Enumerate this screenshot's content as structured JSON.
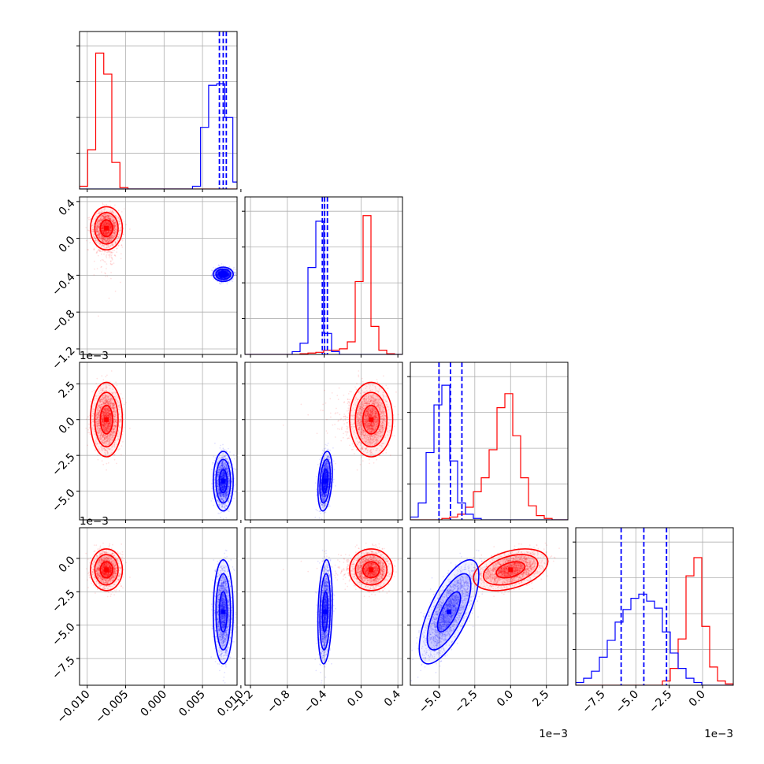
{
  "chart_data": {
    "type": "scatter",
    "subtype": "corner-plot",
    "colors": {
      "red": "#ff0000",
      "blue": "#0000ff"
    },
    "series": [],
    "parameters": [
      {
        "range": [
          -0.011,
          0.0095
        ],
        "ticks": [
          -0.01,
          -0.005,
          0.0,
          0.005,
          0.01
        ],
        "tick_labels": [
          "−0.010",
          "−0.005",
          "0.000",
          "0.005",
          "0.010"
        ]
      },
      {
        "range": [
          -1.26,
          0.45
        ],
        "ticks": [
          -1.2,
          -0.8,
          -0.4,
          0.0,
          0.4
        ],
        "tick_labels": [
          "−1.2",
          "−0.8",
          "−0.4",
          "0.0",
          "0.4"
        ]
      },
      {
        "range": [
          -7.0,
          4.0
        ],
        "ticks": [
          -5.0,
          -2.5,
          0.0,
          2.5
        ],
        "tick_labels": [
          "−5.0",
          "−2.5",
          "0.0",
          "2.5"
        ],
        "offset_text": "1e−3"
      },
      {
        "range": [
          -9.5,
          2.3
        ],
        "ticks": [
          -7.5,
          -5.0,
          -2.5,
          0.0
        ],
        "tick_labels": [
          "−7.5",
          "−5.0",
          "−2.5",
          "0.0"
        ],
        "offset_text": "1e−3"
      }
    ],
    "bottom_offset_texts": [
      "",
      "",
      "1e−3",
      "1e−3"
    ],
    "blue_quantile_lines": [
      [
        0.0072,
        0.0077,
        0.0081
      ],
      [
        -0.42,
        -0.395,
        -0.365
      ],
      [
        -5.0,
        -4.2,
        -3.4
      ],
      [
        -6.1,
        -4.4,
        -2.7
      ]
    ],
    "distributions": {
      "red": {
        "means": [
          -0.0075,
          0.11,
          0.0,
          -0.85
        ],
        "sds": [
          0.0008,
          0.09,
          1.0,
          0.6
        ],
        "corr_0_1": 0.0,
        "corr_2_3": 0.0,
        "corr_1_2": 0.0
      },
      "blue": {
        "means": [
          0.0077,
          -0.39,
          -4.3,
          -4.0
        ],
        "sds": [
          0.0005,
          0.03,
          0.8,
          1.5
        ],
        "corr_1_3": 0.0,
        "corr_2_3": 0.7,
        "corr_1_2": 0.3
      }
    },
    "histograms": {
      "red": {
        "p0": {
          "edges_start": -0.011,
          "step": 0.00105,
          "counts": [
            0.02,
            0.28,
            0.97,
            0.82,
            0.19,
            0.01,
            0,
            0,
            0,
            0,
            0,
            0,
            0,
            0,
            0,
            0,
            0,
            0,
            0,
            0
          ]
        },
        "p1": {
          "edges_start": -1.26,
          "step": 0.0855,
          "counts": [
            0,
            0,
            0,
            0,
            0,
            0,
            0,
            0.005,
            0.01,
            0.015,
            0.03,
            0.03,
            0.04,
            0.09,
            0.52,
            0.99,
            0.2,
            0.03,
            0.005,
            0
          ]
        },
        "p2": {
          "edges_start": -7.0,
          "step": 0.55,
          "counts": [
            0,
            0,
            0,
            0,
            0.01,
            0.02,
            0.04,
            0.09,
            0.2,
            0.3,
            0.5,
            0.8,
            0.9,
            0.6,
            0.3,
            0.1,
            0.03,
            0.01,
            0,
            0
          ]
        },
        "p3": {
          "edges_start": -9.5,
          "step": 0.59,
          "counts": [
            0,
            0,
            0,
            0,
            0,
            0,
            0,
            0,
            0,
            0,
            0,
            0.03,
            0.12,
            0.33,
            0.78,
            0.91,
            0.42,
            0.13,
            0.03,
            0.01
          ]
        }
      },
      "blue": {
        "p0": {
          "edges_start": -0.011,
          "step": 0.00105,
          "counts": [
            0,
            0,
            0,
            0,
            0,
            0,
            0,
            0,
            0,
            0,
            0,
            0,
            0,
            0,
            0.02,
            0.44,
            0.74,
            0.75,
            0.51,
            0.05
          ]
        },
        "p1": {
          "edges_start": -1.26,
          "step": 0.0855,
          "counts": [
            0,
            0,
            0,
            0,
            0,
            0,
            0.02,
            0.08,
            0.62,
            0.95,
            0.15,
            0.02,
            0,
            0,
            0,
            0,
            0,
            0,
            0,
            0
          ]
        },
        "p2": {
          "edges_start": -7.0,
          "step": 0.55,
          "counts": [
            0.02,
            0.12,
            0.48,
            0.82,
            0.96,
            0.42,
            0.12,
            0.04,
            0.01,
            0,
            0,
            0,
            0,
            0,
            0,
            0,
            0,
            0,
            0,
            0
          ]
        },
        "p3": {
          "edges_start": -9.5,
          "step": 0.59,
          "counts": [
            0.02,
            0.05,
            0.1,
            0.2,
            0.32,
            0.45,
            0.54,
            0.62,
            0.65,
            0.6,
            0.55,
            0.38,
            0.23,
            0.12,
            0.05,
            0.02,
            0,
            0,
            0,
            0
          ]
        }
      }
    },
    "grid": true,
    "show_datapoints": true,
    "contour_levels": [
      0.39,
      0.86,
      0.99
    ]
  }
}
